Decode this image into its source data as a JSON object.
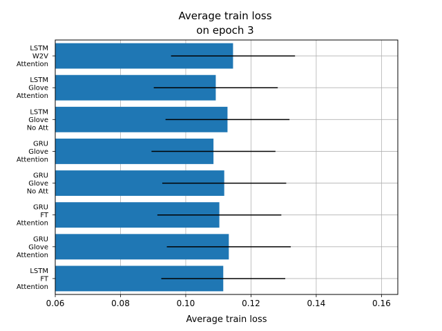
{
  "chart_data": {
    "type": "bar",
    "orientation": "horizontal",
    "title_lines": [
      "Average train loss",
      "on epoch 3"
    ],
    "xlabel": "Average train loss",
    "ylabel": "",
    "xlim": [
      0.06,
      0.165
    ],
    "x_ticks": [
      "0.06",
      "0.08",
      "0.10",
      "0.12",
      "0.14",
      "0.16"
    ],
    "grid": true,
    "categories": [
      [
        "LSTM",
        "W2V",
        "Attention"
      ],
      [
        "LSTM",
        "Glove",
        "Attention"
      ],
      [
        "LSTM",
        "Glove",
        "No Att"
      ],
      [
        "GRU",
        "Glove",
        "Attention"
      ],
      [
        "GRU",
        "Glove",
        "No Att"
      ],
      [
        "GRU",
        "FT",
        "Attention"
      ],
      [
        "GRU",
        "Glove",
        "Attention"
      ],
      [
        "LSTM",
        "FT",
        "Attention"
      ]
    ],
    "values": [
      0.1145,
      0.1092,
      0.1128,
      0.1085,
      0.1118,
      0.1103,
      0.1132,
      0.1115
    ],
    "errors": [
      0.019,
      0.019,
      0.019,
      0.019,
      0.019,
      0.019,
      0.019,
      0.019
    ],
    "bar_color": "#1f77b4",
    "error_color": "#000000",
    "grid_color": "#b0b0b0"
  }
}
